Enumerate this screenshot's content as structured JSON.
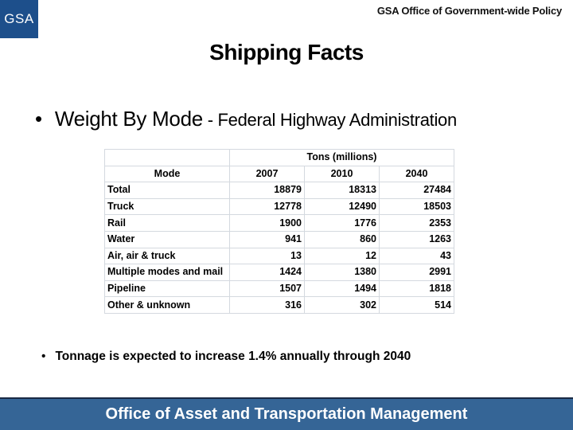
{
  "header": {
    "logo_text": "GSA",
    "logo_color": "#1d4f8b",
    "organization": "GSA Office of Government-wide Policy"
  },
  "slide": {
    "title": "Shipping Facts",
    "bullet_main": "Weight By Mode",
    "bullet_separator": " - ",
    "bullet_source": "Federal Highway Administration",
    "bullet_symbol": "•",
    "footnote": "Tonnage is expected to increase 1.4% annually through 2040"
  },
  "table": {
    "group_header": "Tons (millions)",
    "mode_header": "Mode",
    "years": [
      "2007",
      "2010",
      "2040"
    ],
    "rows": [
      {
        "mode": "Total",
        "values": [
          "18879",
          "18313",
          "27484"
        ]
      },
      {
        "mode": "Truck",
        "values": [
          "12778",
          "12490",
          "18503"
        ]
      },
      {
        "mode": "Rail",
        "values": [
          "1900",
          "1776",
          "2353"
        ]
      },
      {
        "mode": "Water",
        "values": [
          "941",
          "860",
          "1263"
        ]
      },
      {
        "mode": "Air, air & truck",
        "values": [
          "13",
          "12",
          "43"
        ]
      },
      {
        "mode": "Multiple modes and mail",
        "values": [
          "1424",
          "1380",
          "2991"
        ]
      },
      {
        "mode": "Pipeline",
        "values": [
          "1507",
          "1494",
          "1818"
        ]
      },
      {
        "mode": "Other & unknown",
        "values": [
          "316",
          "302",
          "514"
        ]
      }
    ]
  },
  "footer": {
    "text": "Office of Asset and Transportation Management",
    "color": "#356596"
  }
}
